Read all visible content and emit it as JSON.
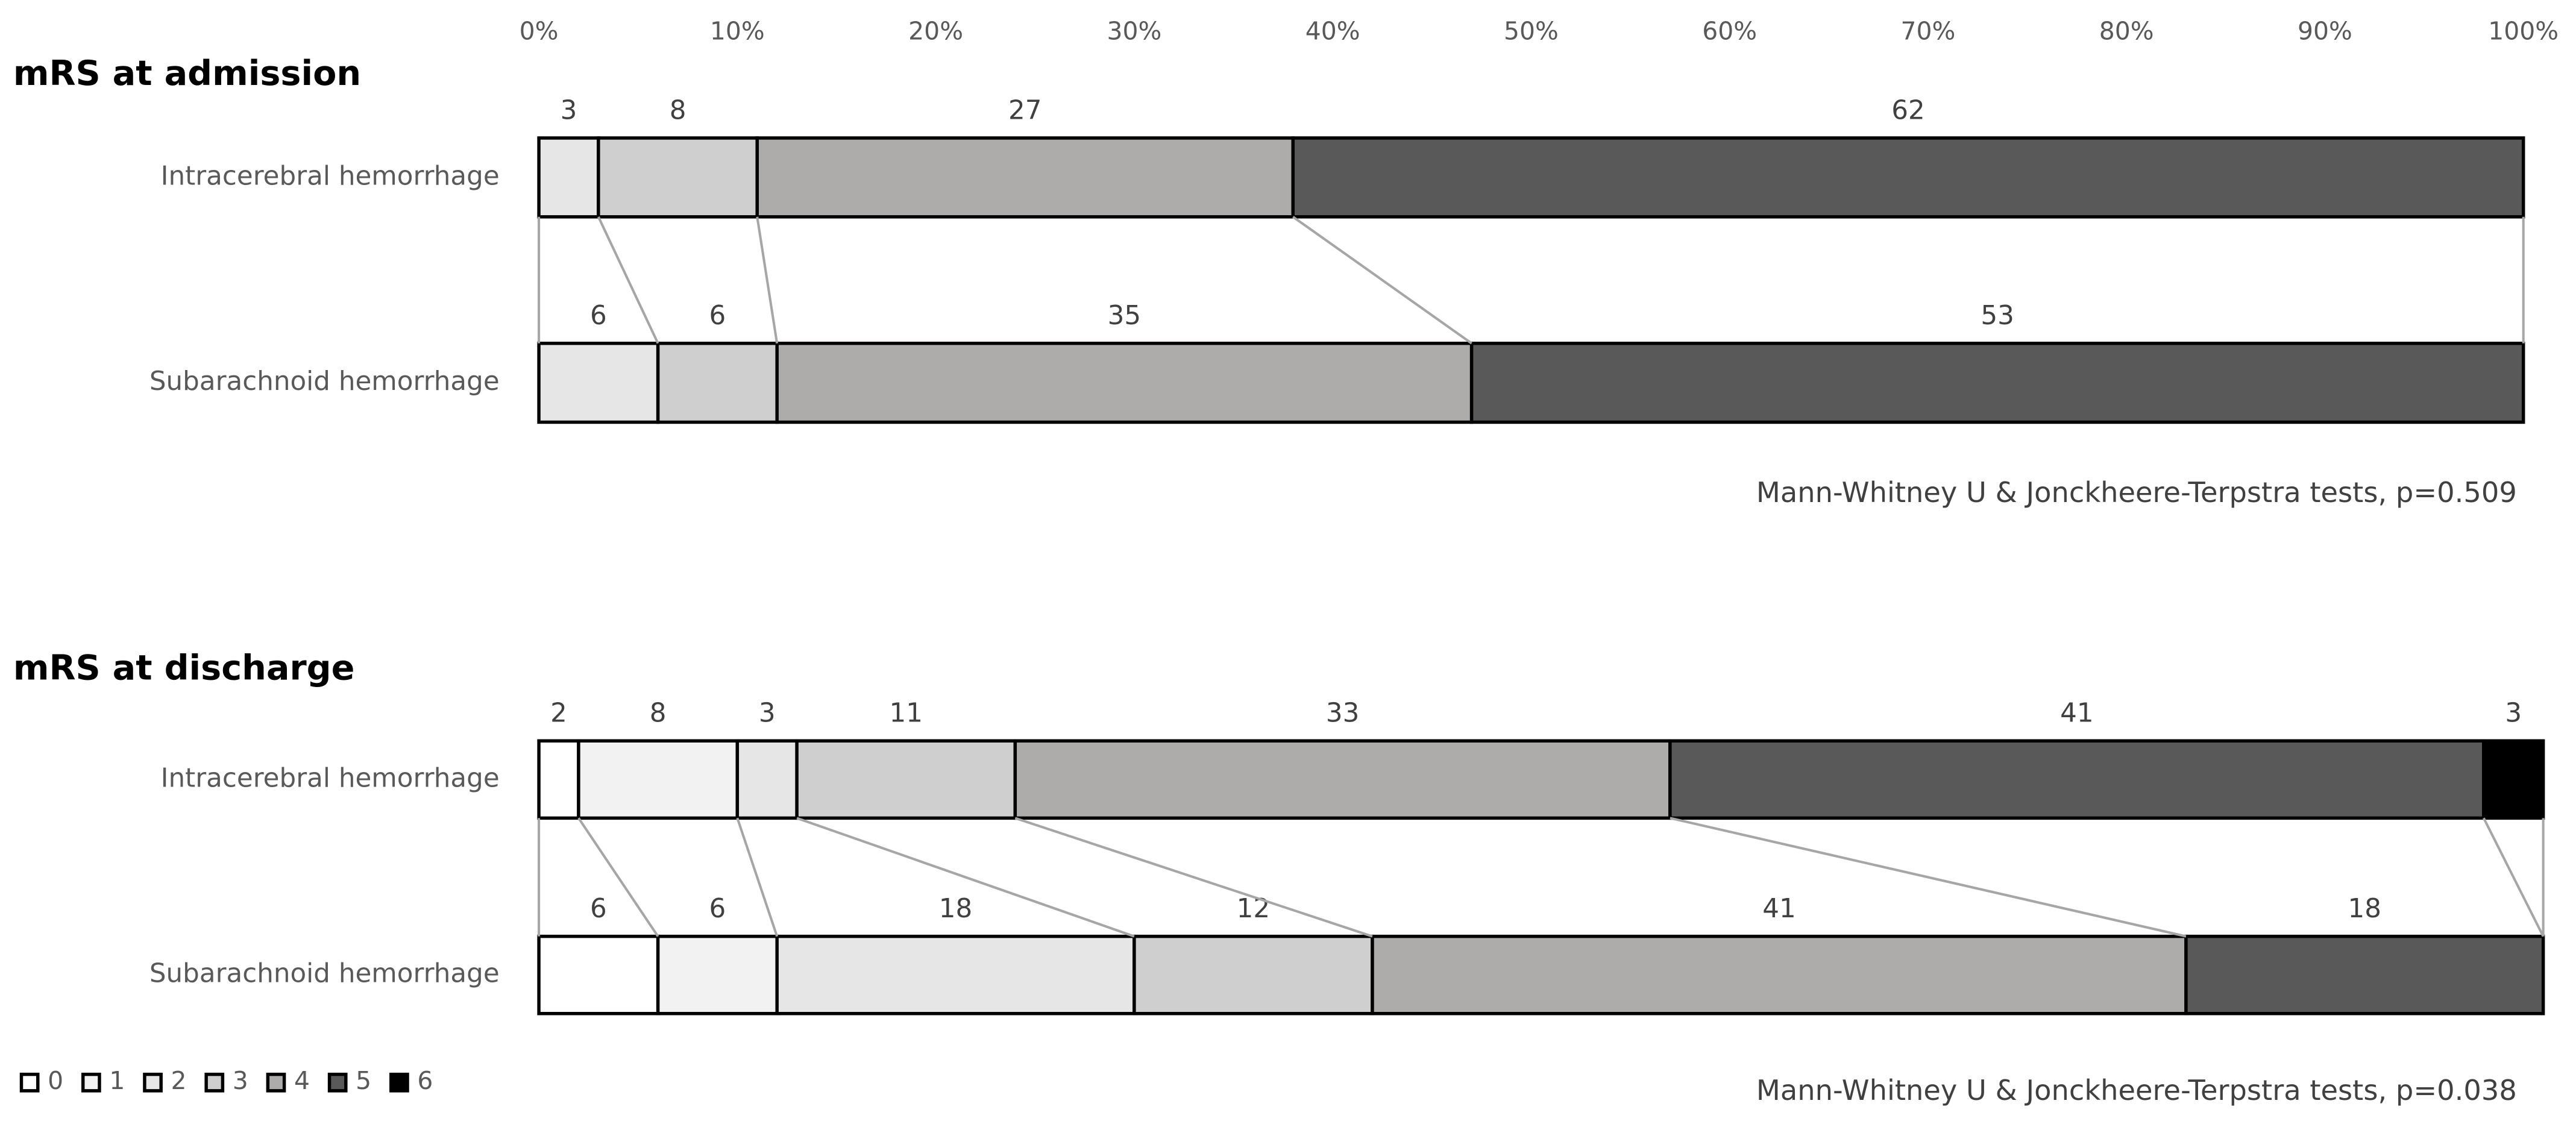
{
  "chart_data": [
    {
      "type": "stacked_bar",
      "title": "mRS at admission",
      "categories": [
        "Intracerebral hemorrhage",
        "Subarachnoid hemorrhage"
      ],
      "series": [
        {
          "color": "#e6e6e6",
          "values": [
            3,
            6
          ]
        },
        {
          "color": "#cfcfcf",
          "values": [
            8,
            6
          ]
        },
        {
          "color": "#aeabab",
          "values": [
            27,
            35
          ]
        },
        {
          "color": "#595959",
          "values": [
            62,
            53
          ]
        }
      ],
      "xlim": [
        0,
        100
      ],
      "xticks": [
        {
          "value": 0,
          "label": "0%"
        },
        {
          "value": 10,
          "label": "10%"
        },
        {
          "value": 20,
          "label": "20%"
        },
        {
          "value": 30,
          "label": "30%"
        },
        {
          "value": 40,
          "label": "40%"
        },
        {
          "value": 50,
          "label": "50%"
        },
        {
          "value": 60,
          "label": "60%"
        },
        {
          "value": 70,
          "label": "70%"
        },
        {
          "value": 80,
          "label": "80%"
        },
        {
          "value": 90,
          "label": "90%"
        },
        {
          "value": 100,
          "label": "100%"
        }
      ],
      "annotation": "Mann-Whitney U & Jonckheere-Terpstra tests, p=0.509"
    },
    {
      "type": "stacked_bar",
      "title": "mRS at discharge",
      "categories": [
        "Intracerebral hemorrhage",
        "Subarachnoid hemorrhage"
      ],
      "series": [
        {
          "name": "0",
          "color": "#ffffff",
          "values": [
            2,
            6
          ]
        },
        {
          "name": "1",
          "color": "#f2f2f2",
          "values": [
            8,
            6
          ]
        },
        {
          "name": "2",
          "color": "#e6e6e6",
          "values": [
            3,
            18
          ]
        },
        {
          "name": "3",
          "color": "#cfcfcf",
          "values": [
            11,
            12
          ]
        },
        {
          "name": "4",
          "color": "#aeabab",
          "values": [
            33,
            41
          ]
        },
        {
          "name": "5",
          "color": "#595959",
          "values": [
            41,
            18
          ]
        },
        {
          "name": "6",
          "color": "#000000",
          "values": [
            3,
            null
          ]
        }
      ],
      "xlim": [
        0,
        100
      ],
      "legend": "bottom-left",
      "annotation": "Mann-Whitney U & Jonckheere-Terpstra tests, p=0.038"
    }
  ]
}
